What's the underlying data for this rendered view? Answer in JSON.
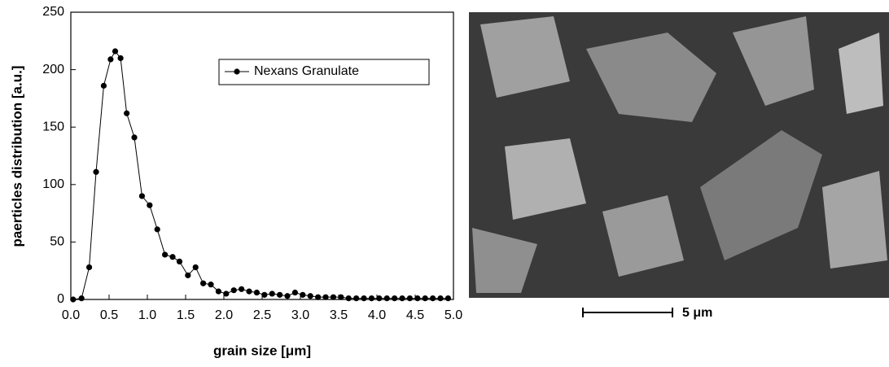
{
  "chart_data": {
    "type": "line",
    "x_label": "grain size [μm]",
    "y_label": "paerticles distribution [a.u.]",
    "x": [
      0.03,
      0.14,
      0.24,
      0.33,
      0.43,
      0.52,
      0.58,
      0.65,
      0.73,
      0.83,
      0.93,
      1.03,
      1.13,
      1.23,
      1.33,
      1.42,
      1.53,
      1.63,
      1.73,
      1.83,
      1.93,
      2.03,
      2.13,
      2.23,
      2.33,
      2.43,
      2.53,
      2.63,
      2.73,
      2.83,
      2.93,
      3.03,
      3.13,
      3.23,
      3.33,
      3.43,
      3.53,
      3.63,
      3.73,
      3.83,
      3.93,
      4.03,
      4.13,
      4.23,
      4.33,
      4.43,
      4.53,
      4.63,
      4.73,
      4.83,
      4.93
    ],
    "series": [
      {
        "name": "Nexans Granulate",
        "color": "#000000",
        "values": [
          0,
          1,
          28,
          111,
          186,
          209,
          216,
          210,
          162,
          141,
          90,
          82,
          61,
          39,
          37,
          33,
          21,
          28,
          14,
          13,
          7,
          5,
          8,
          9,
          7,
          6,
          4,
          5,
          4,
          3,
          6,
          4,
          3,
          2,
          2,
          2,
          2,
          1,
          1,
          1,
          1,
          1,
          1,
          1,
          1,
          1,
          1,
          1,
          1,
          1,
          1
        ]
      }
    ],
    "xlim": [
      0,
      5
    ],
    "ylim": [
      0,
      250
    ],
    "xticks": [
      {
        "value": 0,
        "label": "0.0"
      },
      {
        "value": 0.5,
        "label": "0.5"
      },
      {
        "value": 1,
        "label": "1.0"
      },
      {
        "value": 1.5,
        "label": "1.5"
      },
      {
        "value": 2,
        "label": "2.0"
      },
      {
        "value": 2.5,
        "label": "2.5"
      },
      {
        "value": 3,
        "label": "3.0"
      },
      {
        "value": 3.5,
        "label": "3.5"
      },
      {
        "value": 4,
        "label": "4.0"
      },
      {
        "value": 4.5,
        "label": "4.5"
      },
      {
        "value": 5,
        "label": "5.0"
      }
    ],
    "yticks": [
      0,
      50,
      100,
      150,
      200,
      250
    ],
    "grid": false,
    "legend": "upper right"
  },
  "image": {
    "scale_bar": "5 μm"
  }
}
